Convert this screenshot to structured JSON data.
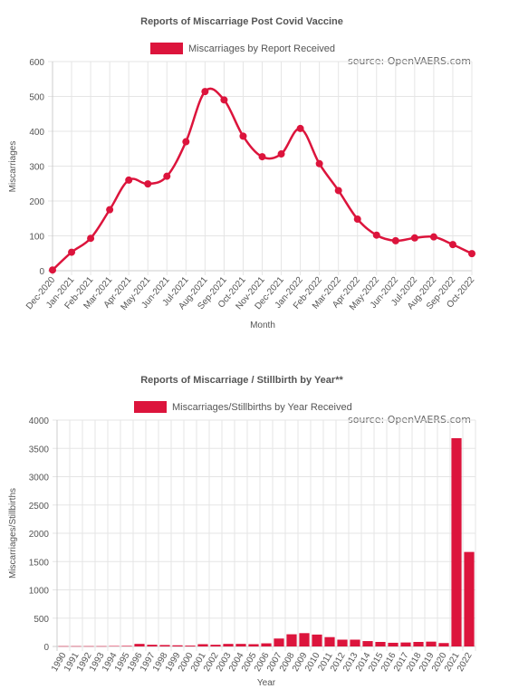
{
  "colors": {
    "accent": "#dc143c",
    "grid": "#e5e5e5",
    "text": "#555555"
  },
  "chart_data": [
    {
      "type": "line",
      "title": "Reports of Miscarriage Post Covid Vaccine",
      "source_note": "source: OpenVAERS.com",
      "xlabel": "Month",
      "ylabel": "Miscarriages",
      "ylim": [
        0,
        600
      ],
      "yticks": [
        0,
        100,
        200,
        300,
        400,
        500,
        600
      ],
      "grid": true,
      "legend": "top-center",
      "categories": [
        "Dec-2020",
        "Jan-2021",
        "Feb-2021",
        "Mar-2021",
        "Apr-2021",
        "May-2021",
        "Jun-2021",
        "Jul-2021",
        "Aug-2021",
        "Sep-2021",
        "Oct-2021",
        "Nov-2021",
        "Dec-2021",
        "Jan-2022",
        "Feb-2022",
        "Mar-2022",
        "Apr-2022",
        "May-2022",
        "Jun-2022",
        "Jul-2022",
        "Aug-2022",
        "Sep-2022",
        "Oct-2022"
      ],
      "series": [
        {
          "name": "Miscarriages by Report Received",
          "values": [
            2,
            53,
            93,
            175,
            260,
            249,
            271,
            370,
            514,
            490,
            386,
            327,
            335,
            408,
            307,
            230,
            148,
            102,
            86,
            94,
            97,
            75,
            49
          ]
        }
      ]
    },
    {
      "type": "bar",
      "title": "Reports of Miscarriage / Stillbirth by Year**",
      "source_note": "source: OpenVAERS.com",
      "xlabel": "Year",
      "ylabel": "Miscarriages/Stillbirths",
      "ylim": [
        0,
        4000
      ],
      "yticks": [
        0,
        500,
        1000,
        1500,
        2000,
        2500,
        3000,
        3500,
        4000
      ],
      "grid": true,
      "legend": "top-center",
      "categories": [
        "1990",
        "1991",
        "1992",
        "1993",
        "1994",
        "1995",
        "1996",
        "1997",
        "1998",
        "1999",
        "2000",
        "2001",
        "2002",
        "2003",
        "2004",
        "2005",
        "2006",
        "2007",
        "2008",
        "2009",
        "2010",
        "2011",
        "2012",
        "2013",
        "2014",
        "2015",
        "2016",
        "2017",
        "2018",
        "2019",
        "2020",
        "2021",
        "2022"
      ],
      "series": [
        {
          "name": "Miscarriages/Stillbirths by Year Received",
          "values": [
            5,
            5,
            5,
            5,
            8,
            10,
            45,
            30,
            25,
            20,
            15,
            40,
            30,
            45,
            45,
            40,
            55,
            140,
            215,
            235,
            210,
            165,
            120,
            120,
            95,
            80,
            65,
            70,
            80,
            85,
            60,
            3680,
            1670
          ]
        }
      ]
    }
  ]
}
